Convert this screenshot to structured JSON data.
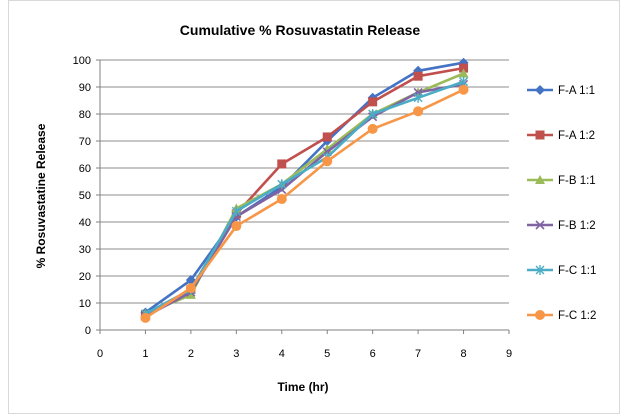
{
  "chart_data": {
    "type": "line",
    "title": "Cumulative % Rosuvastatin Release",
    "xlabel": "Time (hr)",
    "ylabel": "% Rosuvastatine  Release",
    "xlim": [
      0,
      9
    ],
    "ylim": [
      0,
      100
    ],
    "x_ticks": [
      0,
      1,
      2,
      3,
      4,
      5,
      6,
      7,
      8,
      9
    ],
    "y_ticks": [
      0,
      10,
      20,
      30,
      40,
      50,
      60,
      70,
      80,
      90,
      100
    ],
    "grid": "horizontal",
    "legend_position": "right",
    "x": [
      1,
      2,
      3,
      4,
      5,
      6,
      7,
      8
    ],
    "series": [
      {
        "name": "F-A 1:1",
        "color": "#4472C4",
        "marker": "diamond",
        "values": [
          6.5,
          18.5,
          42,
          53,
          70,
          86,
          96,
          99
        ]
      },
      {
        "name": "F-A 1:2",
        "color": "#C0504D",
        "marker": "square",
        "values": [
          5.5,
          15,
          43,
          61.5,
          71.5,
          84.5,
          94,
          97
        ]
      },
      {
        "name": "F-B 1:1",
        "color": "#9BBB59",
        "marker": "triangle",
        "values": [
          6,
          13,
          45,
          54,
          67,
          80,
          88,
          95
        ]
      },
      {
        "name": "F-B 1:2",
        "color": "#8064A2",
        "marker": "x",
        "values": [
          5,
          14,
          42,
          52,
          66,
          79,
          88,
          91
        ]
      },
      {
        "name": "F-C 1:1",
        "color": "#4BACC6",
        "marker": "star",
        "values": [
          6,
          15,
          44,
          54,
          64,
          80,
          86,
          92
        ]
      },
      {
        "name": "F-C 1:2",
        "color": "#F79646",
        "marker": "circle",
        "values": [
          4.5,
          15.5,
          38.5,
          48.5,
          62.5,
          74.5,
          81,
          89
        ]
      }
    ]
  }
}
